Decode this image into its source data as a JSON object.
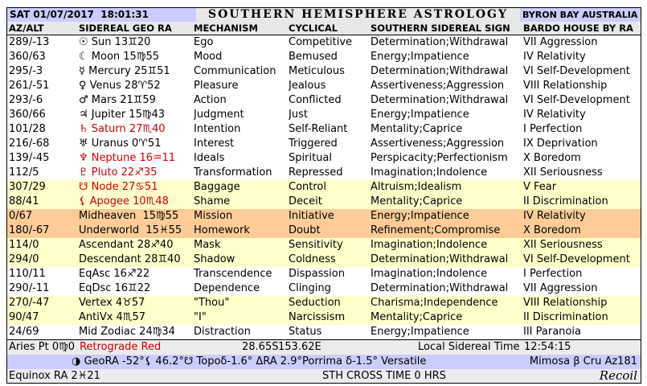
{
  "header": {
    "datetime": "SAT 01/07/2017  18:01:31",
    "title": "SOUTHERN HEMISPHERE ASTROLOGY",
    "location": "BYRON BAY AUSTRALIA"
  },
  "columns": [
    "AZ/ALT",
    "SIDEREAL GEO RA",
    "MECHANISM",
    "CYCLICAL STATE",
    "SOUTHERN SIDEREAL SIGN",
    "BARDO HOUSE BY RA"
  ],
  "rows": [
    {
      "azalt": "289/-13",
      "geo": "☉ Sun 13♊20",
      "mechanism": "Ego",
      "state": "Competitive",
      "sign": "Determination;Withdrawal",
      "house": "VII Aggression",
      "bg": "white",
      "red": false
    },
    {
      "azalt": "360/63",
      "geo": "☾ Moon 15♍55",
      "mechanism": "Mood",
      "state": "Bemused",
      "sign": "Energy;Impatience",
      "house": "IV Relativity",
      "bg": "white",
      "red": false
    },
    {
      "azalt": "295/-3",
      "geo": "☿ Mercury 25♊51",
      "mechanism": "Communication",
      "state": "Meticulous",
      "sign": "Determination;Withdrawal",
      "house": "VI Self-Development",
      "bg": "white",
      "red": false
    },
    {
      "azalt": "261/-51",
      "geo": "♀ Venus 28♈52",
      "mechanism": "Pleasure",
      "state": "Jealous",
      "sign": "Assertiveness;Aggression",
      "house": "VIII Relationship",
      "bg": "white",
      "red": false
    },
    {
      "azalt": "293/-6",
      "geo": "♂ Mars 21♊59",
      "mechanism": "Action",
      "state": "Conflicted",
      "sign": "Determination;Withdrawal",
      "house": "VI Self-Development",
      "bg": "white",
      "red": false
    },
    {
      "azalt": "360/66",
      "geo": "♃ Jupiter 15♍43",
      "mechanism": "Judgment",
      "state": "Just",
      "sign": "Energy;Impatience",
      "house": "IV Relativity",
      "bg": "white",
      "red": false
    },
    {
      "azalt": "101/28",
      "geo": "♄ Saturn 27♏40",
      "mechanism": "Intention",
      "state": "Self-Reliant",
      "sign": "Mentality;Caprice",
      "house": "I Perfection",
      "bg": "white",
      "red": true
    },
    {
      "azalt": "216/-68",
      "geo": "♅ Uranus 0♈51",
      "mechanism": "Interest",
      "state": "Triggered",
      "sign": "Assertiveness;Aggression",
      "house": "IX Deprivation",
      "bg": "white",
      "red": false
    },
    {
      "azalt": "139/-45",
      "geo": "♆ Neptune 16♒11",
      "mechanism": "Ideals",
      "state": "Spiritual",
      "sign": "Perspicacity;Perfectionism",
      "house": "X Boredom",
      "bg": "white",
      "red": true
    },
    {
      "azalt": "112/5",
      "geo": "♇ Pluto 22♐35",
      "mechanism": "Transformation",
      "state": "Repressed",
      "sign": "Imagination;Indolence",
      "house": "XII Seriousness",
      "bg": "white",
      "red": true
    },
    {
      "azalt": "307/29",
      "geo": "☋ Node 27♋51",
      "mechanism": "Baggage",
      "state": "Control",
      "sign": "Altruism;Idealism",
      "house": "V Fear",
      "bg": "yellow",
      "red": true
    },
    {
      "azalt": "88/41",
      "geo": "⚸ Apogee 10♏48",
      "mechanism": "Shame",
      "state": "Deceit",
      "sign": "Mentality;Caprice",
      "house": "II Discrimination",
      "bg": "yellow",
      "red": true
    },
    {
      "azalt": "0/67",
      "geo": "Midheaven  15♍55",
      "mechanism": "Mission",
      "state": "Initiative",
      "sign": "Energy;Impatience",
      "house": "IV Relativity",
      "bg": "orange",
      "red": false
    },
    {
      "azalt": "180/-67",
      "geo": "Underworld  15♓55",
      "mechanism": "Homework",
      "state": "Doubt",
      "sign": "Refinement;Compromise",
      "house": "X Boredom",
      "bg": "orange",
      "red": false
    },
    {
      "azalt": "114/0",
      "geo": "Ascendant 28♐40",
      "mechanism": "Mask",
      "state": "Sensitivity",
      "sign": "Imagination;Indolence",
      "house": "XII Seriousness",
      "bg": "yellow",
      "red": false
    },
    {
      "azalt": "294/0",
      "geo": "Descendant 28♊40",
      "mechanism": "Shadow",
      "state": "Coldness",
      "sign": "Determination;Withdrawal",
      "house": "VI Self-Development",
      "bg": "yellow",
      "red": false
    },
    {
      "azalt": "110/11",
      "geo": "EqAsc 16♐22",
      "mechanism": "Transcendence",
      "state": "Dispassion",
      "sign": "Imagination;Indolence",
      "house": "I Perfection",
      "bg": "white",
      "red": false
    },
    {
      "azalt": "290/-11",
      "geo": "EqDsc 16♊22",
      "mechanism": "Dependence",
      "state": "Clinging",
      "sign": "Determination;Withdrawal",
      "house": "VII Aggression",
      "bg": "white",
      "red": false
    },
    {
      "azalt": "270/-47",
      "geo": "Vertex 4♉57",
      "mechanism": "\"Thou\"",
      "state": "Seduction",
      "sign": "Charisma;Independence",
      "house": "VIII Relationship",
      "bg": "yellow",
      "red": false
    },
    {
      "azalt": "90/47",
      "geo": "AntiVx 4♏57",
      "mechanism": "\"I\"",
      "state": "Narcissism",
      "sign": "Mentality;Caprice",
      "house": "II Discrimination",
      "bg": "yellow",
      "red": false
    },
    {
      "azalt": "24/69",
      "geo": "Mid Zodiac 24♍34",
      "mechanism": "Distraction",
      "state": "Status",
      "sign": "Energy;Impatience",
      "house": "III Paranoia",
      "bg": "white",
      "red": false
    }
  ],
  "footer": {
    "aries_point": "Aries Pt 0♍0",
    "retrograde_note": "Retrograde Red",
    "latitude": "28.65S",
    "longitude": "153.62E",
    "lst_label": "Local Sidereal Time",
    "lst_value": "12:54:15",
    "moon_phase_icon": "◑",
    "geo_line": "GeoRA -52°⚸ 46.2°☋ Topoδ-1.6° ΔRA 2.9°Porrima δ-1.5° Versatile",
    "star_ref": "Mimosa β Cru Az181",
    "equinox": "Equinox RA 2♓21",
    "cross_time": "STH CROSS TIME 0 HRS",
    "brand": "Recoil"
  },
  "colors": {
    "lavender": "#ccccff",
    "band_gray": "#e8e8e8",
    "row_yellow": "#ffffcc",
    "row_orange": "#ffcc99",
    "retrograde_red": "#cc0000"
  }
}
